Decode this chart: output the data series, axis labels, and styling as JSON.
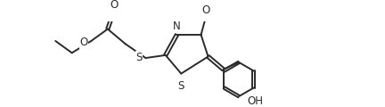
{
  "bg_color": "#ffffff",
  "line_color": "#2a2a2a",
  "line_width": 1.4,
  "font_size": 8.5,
  "figsize": [
    4.32,
    1.2
  ],
  "dpi": 100,
  "xlim": [
    0.0,
    11.0
  ],
  "ylim": [
    0.0,
    3.0
  ]
}
